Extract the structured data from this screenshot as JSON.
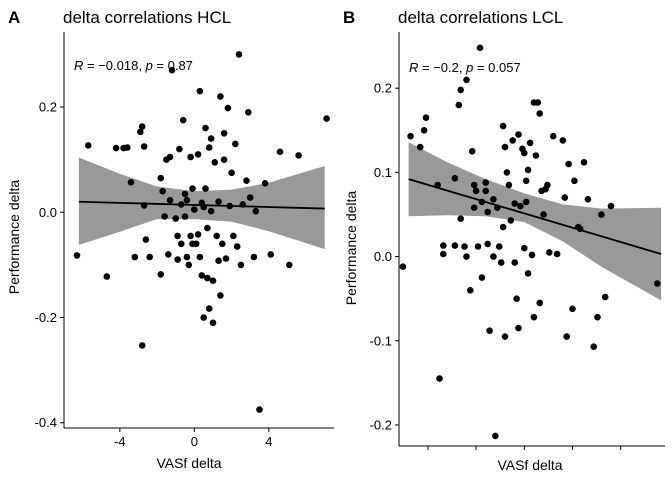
{
  "chart_data": [
    {
      "type": "scatter",
      "panel_label": "A",
      "title": "delta correlations HCL",
      "xlabel": "VASf delta",
      "ylabel": "Performance delta",
      "xlim": [
        -7,
        7.5
      ],
      "ylim": [
        -0.41,
        0.335
      ],
      "xticks": [
        -4,
        0,
        4
      ],
      "xtick_labels": [
        "-4",
        "0",
        "4"
      ],
      "yticks": [
        -0.4,
        -0.2,
        0.0,
        0.2
      ],
      "ytick_labels": [
        "-0.4",
        "-0.2",
        "0.0",
        "0.2"
      ],
      "annotation": {
        "r_label": "R",
        "r_text": " = −0.018, ",
        "p_label": "p",
        "p_text": " = 0.87"
      },
      "fit": {
        "x": [
          -6.2,
          7.0
        ],
        "y": [
          0.02,
          0.007
        ]
      },
      "ci": {
        "x": [
          -6.2,
          -4,
          -2,
          0,
          2,
          4,
          7.0
        ],
        "upper": [
          0.104,
          0.073,
          0.049,
          0.04,
          0.043,
          0.056,
          0.088
        ],
        "lower": [
          -0.062,
          -0.037,
          -0.013,
          -0.013,
          -0.018,
          -0.036,
          -0.07
        ]
      },
      "points": [
        [
          -6.3,
          -0.082
        ],
        [
          -5.7,
          0.127
        ],
        [
          -4.7,
          -0.122
        ],
        [
          -4.2,
          0.122
        ],
        [
          -3.8,
          0.122
        ],
        [
          -3.4,
          0.057
        ],
        [
          -3.2,
          -0.085
        ],
        [
          -3.6,
          0.123
        ],
        [
          -2.9,
          0.153
        ],
        [
          -2.8,
          0.163
        ],
        [
          -2.7,
          0.125
        ],
        [
          -2.7,
          0.013
        ],
        [
          -2.6,
          -0.052
        ],
        [
          -2.4,
          -0.085
        ],
        [
          -2.8,
          -0.253
        ],
        [
          -1.8,
          0.065
        ],
        [
          -1.7,
          0.04
        ],
        [
          -1.5,
          0.1
        ],
        [
          -1.6,
          -0.008
        ],
        [
          -1.8,
          -0.118
        ],
        [
          -1.3,
          0.023
        ],
        [
          -1.4,
          -0.08
        ],
        [
          -1.3,
          0.105
        ],
        [
          -1.2,
          0.27
        ],
        [
          -1.0,
          -0.012
        ],
        [
          -0.9,
          -0.045
        ],
        [
          -0.9,
          -0.09
        ],
        [
          -0.8,
          0.12
        ],
        [
          -0.7,
          0.015
        ],
        [
          -0.7,
          -0.06
        ],
        [
          -0.6,
          0.175
        ],
        [
          -0.5,
          -0.008
        ],
        [
          -0.4,
          0.023
        ],
        [
          -0.4,
          -0.085
        ],
        [
          -0.3,
          -0.1
        ],
        [
          -0.2,
          0.105
        ],
        [
          -0.1,
          0.045
        ],
        [
          -0.2,
          -0.045
        ],
        [
          -0.1,
          -0.06
        ],
        [
          0.0,
          0.005
        ],
        [
          0.1,
          -0.06
        ],
        [
          0.2,
          0.11
        ],
        [
          0.2,
          -0.042
        ],
        [
          0.3,
          -0.085
        ],
        [
          0.4,
          0.018
        ],
        [
          0.4,
          -0.12
        ],
        [
          0.5,
          0.01
        ],
        [
          0.5,
          -0.2
        ],
        [
          0.6,
          0.16
        ],
        [
          0.6,
          0.045
        ],
        [
          0.7,
          -0.03
        ],
        [
          0.7,
          -0.125
        ],
        [
          0.8,
          0.123
        ],
        [
          0.8,
          -0.183
        ],
        [
          0.9,
          0.002
        ],
        [
          1.0,
          -0.13
        ],
        [
          1.0,
          -0.21
        ],
        [
          1.1,
          0.095
        ],
        [
          1.2,
          -0.045
        ],
        [
          1.3,
          0.02
        ],
        [
          1.3,
          -0.092
        ],
        [
          1.4,
          -0.158
        ],
        [
          1.4,
          0.22
        ],
        [
          1.5,
          -0.06
        ],
        [
          1.6,
          0.1
        ],
        [
          1.7,
          -0.088
        ],
        [
          1.8,
          0.198
        ],
        [
          1.9,
          0.012
        ],
        [
          2.0,
          0.075
        ],
        [
          2.1,
          -0.045
        ],
        [
          2.2,
          0.13
        ],
        [
          2.3,
          -0.065
        ],
        [
          2.4,
          0.3
        ],
        [
          2.5,
          -0.1
        ],
        [
          2.6,
          0.015
        ],
        [
          2.8,
          0.06
        ],
        [
          2.9,
          0.19
        ],
        [
          3.0,
          0.028
        ],
        [
          3.2,
          -0.085
        ],
        [
          3.3,
          0.002
        ],
        [
          3.5,
          -0.375
        ],
        [
          3.8,
          0.055
        ],
        [
          4.1,
          -0.08
        ],
        [
          4.6,
          0.115
        ],
        [
          5.1,
          -0.1
        ],
        [
          5.6,
          0.108
        ],
        [
          7.1,
          0.178
        ],
        [
          0.3,
          0.23
        ],
        [
          -0.5,
          0.035
        ],
        [
          0.9,
          0.14
        ],
        [
          1.6,
          0.15
        ]
      ]
    },
    {
      "type": "scatter",
      "panel_label": "B",
      "title": "delta correlations LCL",
      "xlabel": "VASf delta",
      "ylabel": "Performance delta",
      "xlim": [
        -6.5,
        7.3
      ],
      "ylim": [
        -0.225,
        0.262
      ],
      "xticks": [
        -5,
        -2.5,
        0,
        2.5,
        5
      ],
      "xtick_labels": [
        "",
        "",
        "",
        "",
        ""
      ],
      "yticks": [
        -0.2,
        -0.1,
        0.0,
        0.1,
        0.2
      ],
      "ytick_labels": [
        "-0.2",
        "-0.1",
        "0.0",
        "0.1",
        "0.2"
      ],
      "annotation": {
        "r_label": "R",
        "r_text": " = −0.2, ",
        "p_label": "p",
        "p_text": " = 0.057"
      },
      "fit": {
        "x": [
          -6.0,
          7.1
        ],
        "y": [
          0.092,
          0.003
        ]
      },
      "ci": {
        "x": [
          -6.0,
          -4,
          -2,
          0,
          2,
          4,
          7.1
        ],
        "upper": [
          0.136,
          0.112,
          0.092,
          0.075,
          0.062,
          0.057,
          0.058
        ],
        "lower": [
          0.048,
          0.049,
          0.048,
          0.041,
          0.018,
          -0.012,
          -0.052
        ]
      },
      "points": [
        [
          -6.3,
          -0.012
        ],
        [
          -5.9,
          0.143
        ],
        [
          -5.4,
          0.13
        ],
        [
          -5.2,
          0.15
        ],
        [
          -5.1,
          0.165
        ],
        [
          -4.2,
          0.003
        ],
        [
          -4.5,
          0.085
        ],
        [
          -4.4,
          -0.145
        ],
        [
          -4.2,
          0.013
        ],
        [
          -3.6,
          0.013
        ],
        [
          -3.6,
          0.093
        ],
        [
          -3.4,
          0.18
        ],
        [
          -3.3,
          0.198
        ],
        [
          -3.3,
          0.045
        ],
        [
          -3.1,
          0.012
        ],
        [
          -3.0,
          0.21
        ],
        [
          -3.0,
          0.0
        ],
        [
          -2.8,
          -0.04
        ],
        [
          -2.7,
          0.125
        ],
        [
          -2.6,
          0.085
        ],
        [
          -2.5,
          0.078
        ],
        [
          -2.4,
          0.012
        ],
        [
          -2.3,
          0.248
        ],
        [
          -2.2,
          0.065
        ],
        [
          -2.2,
          -0.025
        ],
        [
          -2.0,
          0.088
        ],
        [
          -1.9,
          0.053
        ],
        [
          -1.9,
          0.015
        ],
        [
          -1.8,
          -0.088
        ],
        [
          -1.6,
          0.068
        ],
        [
          -1.6,
          0.0
        ],
        [
          -1.5,
          -0.213
        ],
        [
          -1.4,
          0.058
        ],
        [
          -1.3,
          0.012
        ],
        [
          -1.2,
          -0.007
        ],
        [
          -1.1,
          0.155
        ],
        [
          -1.0,
          0.13
        ],
        [
          -1.0,
          -0.095
        ],
        [
          -0.9,
          0.1
        ],
        [
          -0.8,
          0.085
        ],
        [
          -0.7,
          0.043
        ],
        [
          -0.6,
          0.138
        ],
        [
          -0.5,
          -0.007
        ],
        [
          -0.5,
          0.063
        ],
        [
          -0.4,
          -0.05
        ],
        [
          -0.3,
          0.145
        ],
        [
          -0.3,
          -0.085
        ],
        [
          -0.2,
          0.06
        ],
        [
          -0.1,
          0.128
        ],
        [
          0.0,
          0.123
        ],
        [
          0.0,
          0.01
        ],
        [
          0.1,
          0.065
        ],
        [
          0.2,
          0.103
        ],
        [
          0.2,
          -0.02
        ],
        [
          0.3,
          0.135
        ],
        [
          0.4,
          0.002
        ],
        [
          0.5,
          0.183
        ],
        [
          0.5,
          -0.072
        ],
        [
          0.6,
          0.12
        ],
        [
          0.7,
          0.183
        ],
        [
          0.8,
          0.17
        ],
        [
          0.8,
          -0.055
        ],
        [
          0.9,
          0.078
        ],
        [
          1.1,
          0.08
        ],
        [
          1.2,
          0.085
        ],
        [
          1.3,
          0.005
        ],
        [
          1.5,
          0.143
        ],
        [
          1.7,
          0.003
        ],
        [
          2.0,
          0.138
        ],
        [
          2.2,
          -0.095
        ],
        [
          2.3,
          0.11
        ],
        [
          2.5,
          -0.062
        ],
        [
          2.6,
          0.09
        ],
        [
          2.8,
          0.035
        ],
        [
          2.9,
          0.033
        ],
        [
          3.1,
          0.112
        ],
        [
          3.3,
          0.068
        ],
        [
          3.6,
          -0.107
        ],
        [
          3.8,
          -0.072
        ],
        [
          4.0,
          0.05
        ],
        [
          4.2,
          -0.048
        ],
        [
          4.5,
          0.06
        ],
        [
          6.9,
          -0.032
        ],
        [
          -2.6,
          0.058
        ],
        [
          -2.0,
          0.078
        ],
        [
          -1.1,
          0.035
        ],
        [
          0.1,
          0.09
        ],
        [
          1.0,
          0.05
        ],
        [
          2.1,
          0.07
        ]
      ]
    }
  ]
}
